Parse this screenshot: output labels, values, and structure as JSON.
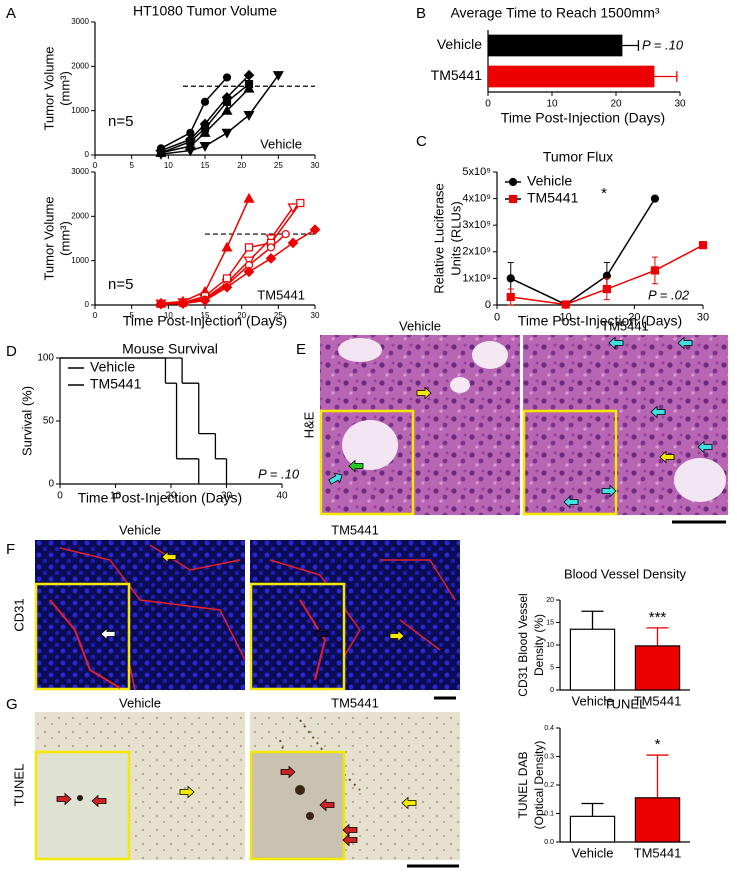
{
  "chart_data": [
    {
      "type": "line",
      "panel": "A",
      "title": "HT1080 Tumor Volume",
      "ylabel": [
        "Tumor Volume",
        "(mm³)"
      ],
      "annotations": [
        "n=5",
        "Vehicle"
      ],
      "xlim": [
        0,
        30
      ],
      "xticks": [
        0,
        5,
        10,
        15,
        20,
        25,
        30
      ],
      "ylim": [
        0,
        3000
      ],
      "yticks": [
        0,
        1000,
        2000,
        3000
      ],
      "reference_line": {
        "x": [
          12,
          30
        ],
        "y": 1550,
        "color": "#777777"
      },
      "series": [
        {
          "color": "#000000",
          "marker": "circle",
          "x": [
            9,
            13,
            15,
            18
          ],
          "values": [
            150,
            500,
            1200,
            1750
          ]
        },
        {
          "color": "#000000",
          "marker": "diamond",
          "x": [
            9,
            13,
            15,
            18,
            21
          ],
          "values": [
            100,
            350,
            700,
            1300,
            1800
          ]
        },
        {
          "color": "#000000",
          "marker": "square",
          "x": [
            9,
            13,
            15,
            18,
            21
          ],
          "values": [
            50,
            300,
            600,
            1200,
            1600
          ]
        },
        {
          "color": "#000000",
          "marker": "triangle",
          "x": [
            9,
            13,
            15,
            18,
            21
          ],
          "values": [
            50,
            200,
            500,
            1000,
            1500
          ]
        },
        {
          "color": "#000000",
          "marker": "triangle-down",
          "x": [
            9,
            13,
            15,
            18,
            21,
            25
          ],
          "values": [
            20,
            100,
            200,
            500,
            900,
            1800
          ]
        }
      ]
    },
    {
      "type": "line",
      "ylabel": [
        "Tumor Volume",
        "(mm³)"
      ],
      "xlabel": "Time Post-Injection (Days)",
      "annotations": [
        "n=5",
        "TM5441"
      ],
      "xlim": [
        0,
        30
      ],
      "xticks": [
        0,
        5,
        10,
        15,
        20,
        25,
        30
      ],
      "ylim": [
        0,
        3000
      ],
      "yticks": [
        0,
        1000,
        2000,
        3000
      ],
      "reference_line": {
        "x": [
          15,
          30
        ],
        "y": 1600,
        "color": "#ee6666"
      },
      "series": [
        {
          "color": "#ee0000",
          "marker": "triangle",
          "x": [
            9,
            12,
            15,
            18,
            21
          ],
          "values": [
            40,
            80,
            300,
            1300,
            2400
          ]
        },
        {
          "color": "#ee0000",
          "marker": "open-triangle-down",
          "x": [
            9,
            12,
            15,
            18,
            21,
            24,
            27
          ],
          "values": [
            30,
            60,
            150,
            500,
            1000,
            1500,
            2200
          ]
        },
        {
          "color": "#ee0000",
          "marker": "open-square",
          "x": [
            9,
            12,
            15,
            18,
            21,
            24,
            28
          ],
          "values": [
            30,
            50,
            200,
            600,
            1300,
            1400,
            2300
          ]
        },
        {
          "color": "#ee0000",
          "marker": "open-circle",
          "x": [
            9,
            12,
            15,
            18,
            21,
            24,
            26
          ],
          "values": [
            20,
            40,
            120,
            450,
            900,
            1300,
            1600
          ]
        },
        {
          "color": "#ee0000",
          "marker": "diamond",
          "x": [
            9,
            12,
            15,
            18,
            21,
            24,
            27,
            30
          ],
          "values": [
            20,
            30,
            100,
            400,
            750,
            1050,
            1400,
            1700
          ]
        }
      ]
    },
    {
      "type": "barh",
      "panel": "B",
      "title": "Average Time to Reach 1500mm³",
      "xlabel": "Time Post-Injection (Days)",
      "categories": [
        "Vehicle",
        "TM5441"
      ],
      "values": [
        21,
        26
      ],
      "errors": [
        2.5,
        3.5
      ],
      "colors": [
        "#000000",
        "#ee0000"
      ],
      "xlim": [
        0,
        30
      ],
      "xticks": [
        0,
        10,
        20,
        30
      ],
      "annotations": [
        "P = .10"
      ]
    },
    {
      "type": "line",
      "panel": "C",
      "title": "Tumor Flux",
      "ylabel": [
        "Relative Luciferase",
        "Units (RLUs)"
      ],
      "xlabel": "Time Post-Injection (Days)",
      "annotations": [
        "*",
        "P = .02"
      ],
      "legend": "upper left",
      "xlim": [
        0,
        30
      ],
      "xticks": [
        0,
        10,
        20,
        30
      ],
      "ylim": [
        0,
        5000000000
      ],
      "yticks": [
        0,
        {
          "value": 1000000000,
          "label": "1x10⁹"
        },
        {
          "value": 2000000000,
          "label": "2x10⁹"
        },
        {
          "value": 3000000000,
          "label": "3x10⁹"
        },
        {
          "value": 4000000000,
          "label": "4x10⁹"
        },
        {
          "value": 5000000000,
          "label": "5x10⁹"
        }
      ],
      "series": [
        {
          "name": "Vehicle",
          "color": "#000000",
          "marker": "circle",
          "x": [
            2,
            10,
            16,
            23
          ],
          "values": [
            1000000000,
            20000000,
            1100000000,
            4000000000
          ],
          "errors": [
            600000000,
            0,
            500000000,
            0
          ]
        },
        {
          "name": "TM5441",
          "color": "#ee0000",
          "marker": "square",
          "x": [
            2,
            10,
            16,
            23,
            30
          ],
          "values": [
            300000000,
            20000000,
            600000000,
            1300000000,
            2250000000
          ],
          "errors": [
            300000000,
            0,
            400000000,
            500000000,
            0
          ]
        }
      ]
    },
    {
      "type": "step",
      "panel": "D",
      "title": "Mouse Survival",
      "ylabel": "Survival (%)",
      "xlabel": "Time Post-Injection (Days)",
      "annotations": [
        "P = .10"
      ],
      "legend": "upper left",
      "xlim": [
        0,
        40
      ],
      "xticks": [
        0,
        10,
        20,
        30,
        40
      ],
      "ylim": [
        0,
        100
      ],
      "yticks": [
        0,
        50,
        100
      ],
      "series": [
        {
          "name": "Vehicle",
          "color": "#000000",
          "x": [
            0,
            19,
            21,
            25
          ],
          "values": [
            100,
            80,
            20,
            0
          ]
        },
        {
          "name": "TM5441",
          "color": "#ee0000",
          "x": [
            0,
            22,
            25,
            28,
            30
          ],
          "values": [
            100,
            80,
            40,
            20,
            0
          ]
        }
      ]
    },
    {
      "type": "bar",
      "title": "Blood Vessel Density",
      "ylabel": [
        "CD31 Blood Vessel",
        "Density (%)"
      ],
      "annotations": [
        "***"
      ],
      "categories": [
        "Vehicle",
        "TM5441"
      ],
      "values": [
        13.5,
        9.8
      ],
      "errors": [
        4,
        4
      ],
      "colors": [
        "#ffffff",
        "#ee0000"
      ],
      "ylim": [
        0,
        20
      ],
      "yticks": [
        0,
        5,
        10,
        15,
        20
      ]
    },
    {
      "type": "bar",
      "title": "TUNEL",
      "ylabel": [
        "TUNEL DAB",
        "(Optical Density)"
      ],
      "annotations": [
        "*"
      ],
      "categories": [
        "Vehicle",
        "TM5441"
      ],
      "values": [
        0.09,
        0.155
      ],
      "errors": [
        0.045,
        0.15
      ],
      "colors": [
        "#ffffff",
        "#ee0000"
      ],
      "ylim": [
        0,
        0.4
      ],
      "yticks": [
        {
          "value": 0,
          "label": "0.0"
        },
        0.1,
        0.2,
        0.3,
        0.4
      ]
    }
  ],
  "micrographs": [
    {
      "panel": "E",
      "row_label": "H&E",
      "columns": [
        "Vehicle",
        "TM5441"
      ]
    },
    {
      "panel": "F",
      "row_label": "CD31",
      "columns": [
        "Vehicle",
        "TM5441"
      ]
    },
    {
      "panel": "G",
      "row_label": "TUNEL",
      "columns": [
        "Vehicle",
        "TM5441"
      ]
    }
  ]
}
